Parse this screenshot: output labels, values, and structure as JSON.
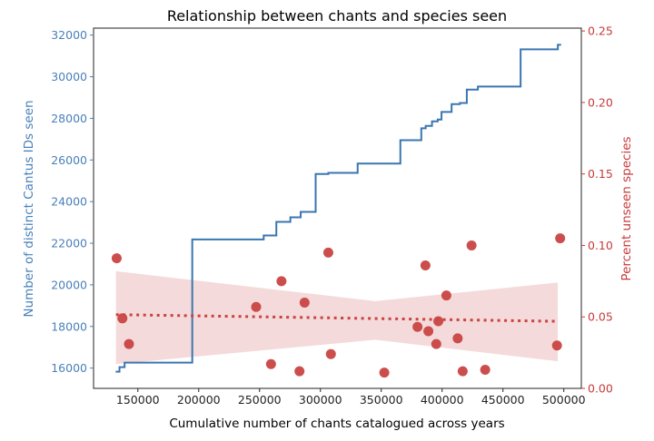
{
  "chart_data": {
    "type": "line+scatter",
    "title": "Relationship between chants and species seen",
    "xlabel": "Cumulative number of chants catalogued across years",
    "ylabel_left": "Number of distinct Cantus IDs seen",
    "ylabel_right": "Percent unseen species",
    "xlim": [
      113600,
      514400
    ],
    "ylim_left": [
      15025,
      32335
    ],
    "ylim_right": [
      0,
      0.252
    ],
    "x_ticks": [
      150000,
      200000,
      250000,
      300000,
      350000,
      400000,
      450000,
      500000
    ],
    "x_tick_labels": [
      "150000",
      "200000",
      "250000",
      "300000",
      "350000",
      "400000",
      "450000",
      "500000"
    ],
    "y_left_ticks": [
      16000,
      18000,
      20000,
      22000,
      24000,
      26000,
      28000,
      30000,
      32000
    ],
    "y_left_tick_labels": [
      "16000",
      "18000",
      "20000",
      "22000",
      "24000",
      "26000",
      "28000",
      "30000",
      "32000"
    ],
    "y_right_ticks": [
      0,
      0.05,
      0.1,
      0.15,
      0.2,
      0.25
    ],
    "y_right_tick_labels": [
      "0.00",
      "0.05",
      "0.10",
      "0.15",
      "0.20",
      "0.25"
    ],
    "grid": false,
    "colors": {
      "left": "#3a76b0",
      "right": "#c84442",
      "band": "#f2d4d4",
      "left_text": "#4a80b8",
      "right_text": "#c83a3a"
    },
    "step_series": {
      "axis": "left",
      "x": [
        131800,
        134900,
        139100,
        194700,
        253400,
        263800,
        275300,
        283800,
        296100,
        306500,
        330600,
        365700,
        382900,
        386500,
        391700,
        396400,
        399500,
        407800,
        414600,
        420300,
        429400,
        464500,
        495100,
        497800
      ],
      "y": [
        15825,
        16045,
        16260,
        22180,
        22370,
        23025,
        23245,
        23505,
        25325,
        25380,
        25830,
        26950,
        27520,
        27635,
        27855,
        27940,
        28305,
        28685,
        28740,
        29380,
        29530,
        31315,
        31535,
        31535
      ]
    },
    "scatter_series": {
      "axis": "right",
      "x": [
        132600,
        137300,
        142700,
        247200,
        259400,
        268000,
        282800,
        287000,
        306500,
        308600,
        352500,
        379800,
        386300,
        388700,
        395200,
        396900,
        403500,
        412800,
        416900,
        424200,
        435400,
        494400,
        497000
      ],
      "y": [
        0.091,
        0.049,
        0.031,
        0.057,
        0.017,
        0.075,
        0.012,
        0.06,
        0.095,
        0.024,
        0.011,
        0.043,
        0.086,
        0.04,
        0.031,
        0.047,
        0.065,
        0.035,
        0.012,
        0.1,
        0.013,
        0.03,
        0.105
      ]
    },
    "regression": {
      "axis": "right",
      "x": [
        132000,
        495000
      ],
      "y": [
        0.0516,
        0.0469
      ],
      "ci": {
        "x": [
          132000,
          345000,
          495000
        ],
        "upper": [
          0.082,
          0.061,
          0.074
        ],
        "lower": [
          0.017,
          0.034,
          0.019
        ]
      }
    }
  }
}
